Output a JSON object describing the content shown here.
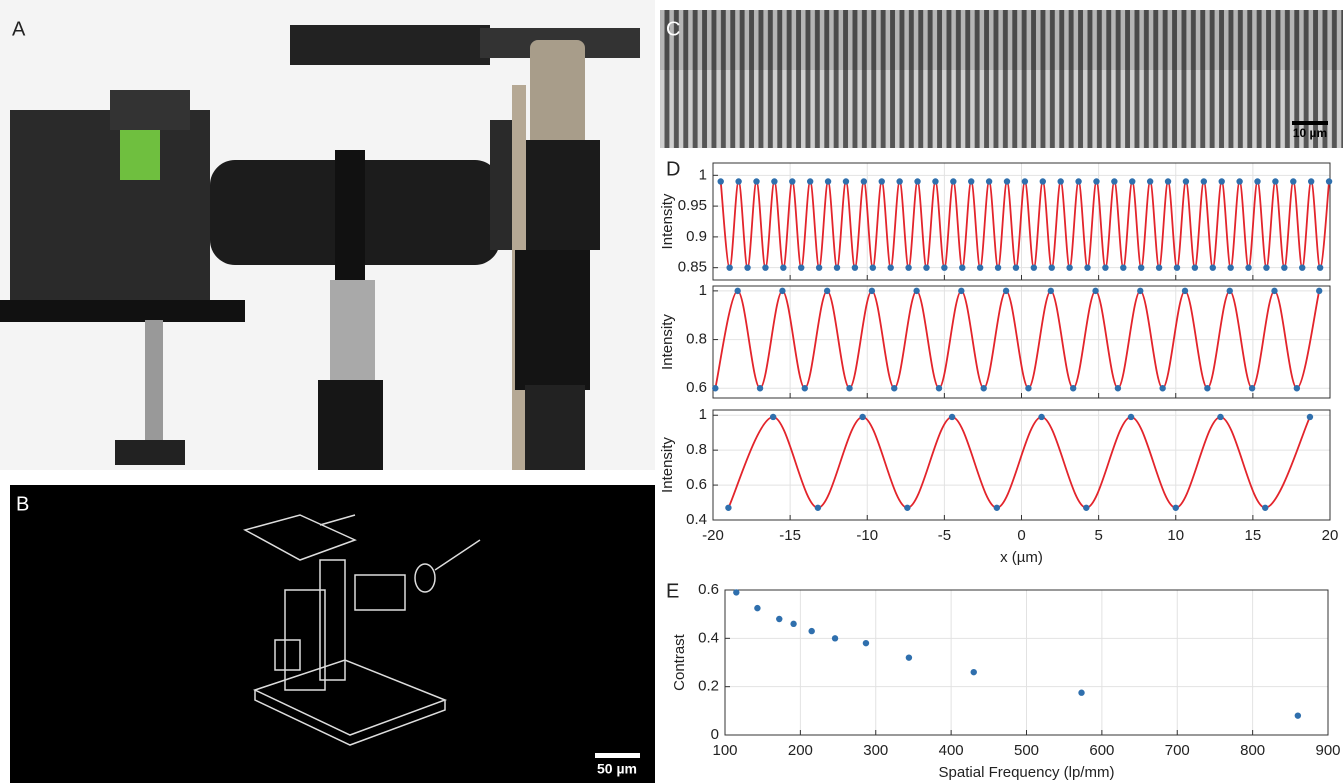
{
  "panel_labels": [
    "A",
    "B",
    "C",
    "D",
    "E"
  ],
  "scale_bars": {
    "C": "10 µm",
    "B": "50 µm"
  },
  "chart_data": [
    {
      "type": "line",
      "y_label": "Intensity",
      "marker_color": "#2f6fad",
      "line_color": "#e3242b",
      "grid": true,
      "xlim": [
        -20,
        20
      ],
      "xticks": [
        -20,
        -15,
        -10,
        -5,
        0,
        5,
        10,
        15,
        20
      ],
      "show_xtick_labels": false,
      "ylim": [
        0.83,
        1.02
      ],
      "yticks": [
        0.85,
        0.9,
        0.95,
        1
      ],
      "x": [
        -19.5,
        -18.92,
        -18.34,
        -17.76,
        -17.18,
        -16.6,
        -16.02,
        -15.44,
        -14.86,
        -14.28,
        -13.7,
        -13.12,
        -12.54,
        -11.96,
        -11.38,
        -10.8,
        -10.22,
        -9.64,
        -9.06,
        -8.48,
        -7.9,
        -7.32,
        -6.74,
        -6.16,
        -5.58,
        -5,
        -4.42,
        -3.84,
        -3.26,
        -2.68,
        -2.1,
        -1.52,
        -0.94,
        -0.36,
        0.22,
        0.8,
        1.38,
        1.96,
        2.54,
        3.12,
        3.7,
        4.28,
        4.86,
        5.44,
        6.02,
        6.6,
        7.18,
        7.76,
        8.34,
        8.92,
        9.5,
        10.08,
        10.66,
        11.24,
        11.82,
        12.4,
        12.98,
        13.56,
        14.14,
        14.72,
        15.3,
        15.88,
        16.46,
        17.04,
        17.62,
        18.2,
        18.78,
        19.36,
        19.94
      ],
      "values": [
        0.99,
        0.85,
        0.99,
        0.85,
        0.99,
        0.85,
        0.99,
        0.85,
        0.99,
        0.85,
        0.99,
        0.85,
        0.99,
        0.85,
        0.99,
        0.85,
        0.99,
        0.85,
        0.99,
        0.85,
        0.99,
        0.85,
        0.99,
        0.85,
        0.99,
        0.85,
        0.99,
        0.85,
        0.99,
        0.85,
        0.99,
        0.85,
        0.99,
        0.85,
        0.99,
        0.85,
        0.99,
        0.85,
        0.99,
        0.85,
        0.99,
        0.85,
        0.99,
        0.85,
        0.99,
        0.85,
        0.99,
        0.85,
        0.99,
        0.85,
        0.99,
        0.85,
        0.99,
        0.85,
        0.99,
        0.85,
        0.99,
        0.85,
        0.99,
        0.85,
        0.99,
        0.85,
        0.99,
        0.85,
        0.99,
        0.85,
        0.99,
        0.85,
        0.99
      ]
    },
    {
      "type": "line",
      "y_label": "Intensity",
      "marker_color": "#2f6fad",
      "line_color": "#e3242b",
      "grid": true,
      "xlim": [
        -20,
        20
      ],
      "xticks": [
        -20,
        -15,
        -10,
        -5,
        0,
        5,
        10,
        15,
        20
      ],
      "show_xtick_labels": false,
      "ylim": [
        0.56,
        1.02
      ],
      "yticks": [
        0.6,
        0.8,
        1
      ],
      "x": [
        -19.85,
        -18.4,
        -16.95,
        -15.5,
        -14.05,
        -12.6,
        -11.15,
        -9.7,
        -8.25,
        -6.8,
        -5.35,
        -3.9,
        -2.45,
        -1,
        0.45,
        1.9,
        3.35,
        4.8,
        6.25,
        7.7,
        9.15,
        10.6,
        12.05,
        13.5,
        14.95,
        16.4,
        17.85,
        19.3
      ],
      "values": [
        0.6,
        1,
        0.6,
        1,
        0.6,
        1,
        0.6,
        1,
        0.6,
        1,
        0.6,
        1,
        0.6,
        1,
        0.6,
        1,
        0.6,
        1,
        0.6,
        1,
        0.6,
        1,
        0.6,
        1,
        0.6,
        1,
        0.6,
        1
      ]
    },
    {
      "type": "line",
      "y_label": "Intensity",
      "x_label": "x (µm)",
      "marker_color": "#2f6fad",
      "line_color": "#e3242b",
      "grid": true,
      "xlim": [
        -20,
        20
      ],
      "xticks": [
        -20,
        -15,
        -10,
        -5,
        0,
        5,
        10,
        15,
        20
      ],
      "show_xtick_labels": true,
      "ylim": [
        0.4,
        1.03
      ],
      "yticks": [
        0.4,
        0.6,
        0.8,
        1
      ],
      "x": [
        -19,
        -16.1,
        -13.2,
        -10.3,
        -7.4,
        -4.5,
        -1.6,
        1.3,
        4.2,
        7.1,
        10,
        12.9,
        15.8,
        18.7
      ],
      "values": [
        0.47,
        0.99,
        0.47,
        0.99,
        0.47,
        0.99,
        0.47,
        0.99,
        0.47,
        0.99,
        0.47,
        0.99,
        0.47,
        0.99
      ]
    },
    {
      "type": "scatter",
      "y_label": "Contrast",
      "x_label": "Spatial Frequency (lp/mm)",
      "marker_color": "#2f6fad",
      "grid": true,
      "xlim": [
        100,
        900
      ],
      "xticks": [
        100,
        200,
        300,
        400,
        500,
        600,
        700,
        800,
        900
      ],
      "show_xtick_labels": true,
      "ylim": [
        0,
        0.6
      ],
      "yticks": [
        0,
        0.2,
        0.4,
        0.6
      ],
      "x": [
        115,
        143,
        172,
        191,
        215,
        246,
        287,
        344,
        430,
        573,
        860
      ],
      "values": [
        0.59,
        0.525,
        0.48,
        0.46,
        0.43,
        0.4,
        0.38,
        0.32,
        0.26,
        0.175,
        0.08
      ]
    }
  ]
}
